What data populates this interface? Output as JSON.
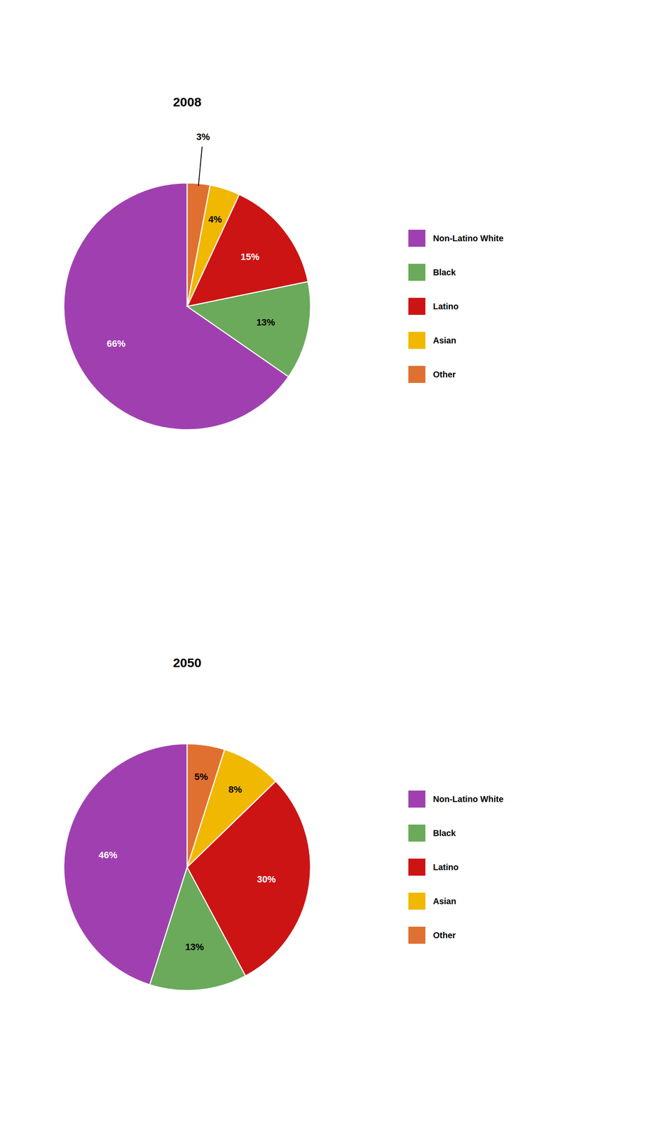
{
  "chart_data": [
    {
      "type": "pie",
      "title": "2008",
      "categories": [
        "Non-Latino White",
        "Black",
        "Latino",
        "Asian",
        "Other"
      ],
      "values": [
        66,
        13,
        15,
        4,
        3
      ],
      "value_labels": [
        "66%",
        "13%",
        "15%",
        "4%",
        "3%"
      ],
      "colors": [
        "#a040b0",
        "#6aaa5a",
        "#cc1414",
        "#f0b800",
        "#e07030"
      ],
      "data_labels": true,
      "legend": "right"
    },
    {
      "type": "pie",
      "title": "2050",
      "categories": [
        "Non-Latino White",
        "Black",
        "Latino",
        "Asian",
        "Other"
      ],
      "values": [
        46,
        13,
        30,
        8,
        5
      ],
      "value_labels": [
        "46%",
        "13%",
        "30%",
        "8%",
        "5%"
      ],
      "colors": [
        "#a040b0",
        "#6aaa5a",
        "#cc1414",
        "#f0b800",
        "#e07030"
      ],
      "data_labels": true,
      "legend": "right"
    }
  ]
}
